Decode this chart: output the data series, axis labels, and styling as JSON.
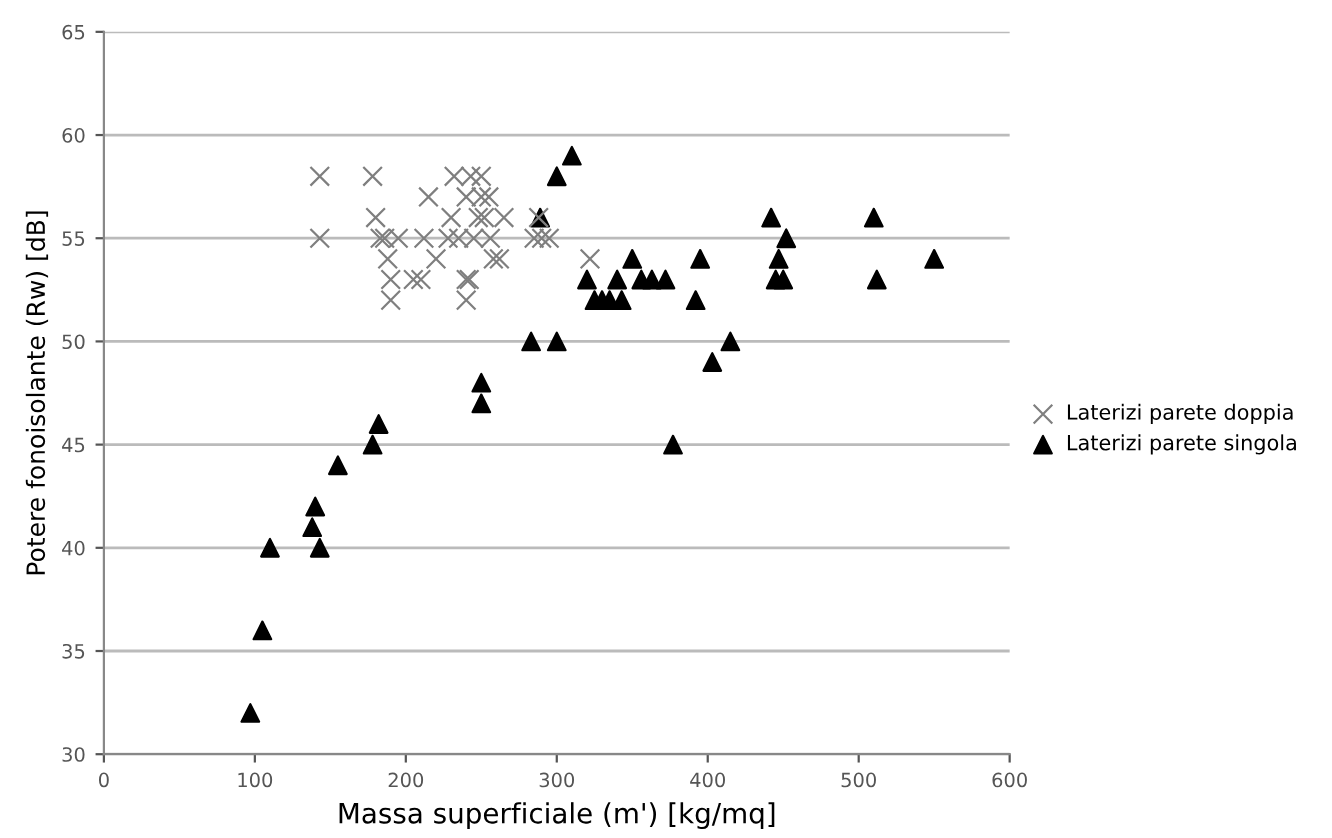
{
  "chart_data": {
    "type": "scatter",
    "xlabel": "Massa superficiale (m') [kg/mq]",
    "ylabel": "Potere fonoisolante (Rw) [dB]",
    "xlim": [
      0,
      600
    ],
    "xticks": [
      0,
      100,
      200,
      300,
      400,
      500,
      600
    ],
    "ylim": [
      30,
      65
    ],
    "yticks": [
      30,
      35,
      40,
      45,
      50,
      55,
      60,
      65
    ],
    "grid": "y",
    "legend": "right",
    "series": [
      {
        "name": "Laterizi parete doppia",
        "color": "#7f7f7f",
        "marker": "cross",
        "x": [
          143,
          143,
          178,
          180,
          183,
          186,
          188,
          190,
          190,
          195,
          205,
          210,
          212,
          215,
          220,
          228,
          230,
          232,
          235,
          240,
          240,
          242,
          243,
          245,
          248,
          250,
          250,
          252,
          255,
          256,
          258,
          262,
          265,
          240,
          285,
          290,
          295,
          322,
          288
        ],
        "values": [
          58,
          55,
          58,
          56,
          55,
          55,
          54,
          53,
          52,
          55,
          53,
          53,
          55,
          57,
          54,
          55,
          56,
          58,
          55,
          53,
          52,
          53,
          58,
          55,
          56,
          57,
          58,
          56,
          57,
          55,
          54,
          54,
          56,
          57,
          55,
          55,
          55,
          54,
          56
        ]
      },
      {
        "name": "Laterizi parete singola",
        "color": "#000000",
        "marker": "triangle",
        "x": [
          97,
          105,
          110,
          138,
          140,
          143,
          155,
          178,
          182,
          250,
          250,
          283,
          300,
          300,
          310,
          289,
          320,
          325,
          330,
          335,
          343,
          340,
          350,
          356,
          363,
          372,
          377,
          395,
          392,
          403,
          415,
          442,
          445,
          447,
          450,
          452,
          510,
          512,
          550
        ],
        "values": [
          32,
          36,
          40,
          41,
          42,
          40,
          44,
          45,
          46,
          48,
          47,
          50,
          50,
          58,
          59,
          56,
          53,
          52,
          52,
          52,
          52,
          53,
          54,
          53,
          53,
          53,
          45,
          54,
          52,
          49,
          50,
          56,
          53,
          54,
          53,
          55,
          56,
          53,
          54
        ]
      }
    ]
  }
}
